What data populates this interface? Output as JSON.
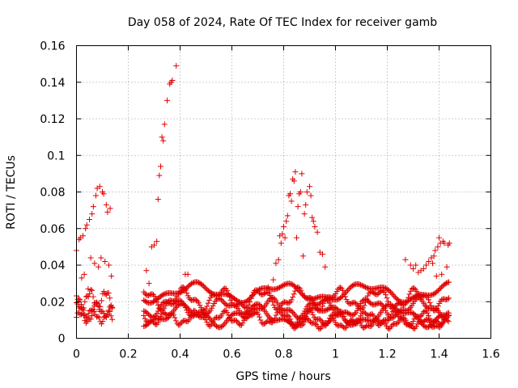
{
  "chart_data": {
    "type": "scatter",
    "title": "Day 058 of 2024, Rate Of TEC Index for receiver gamb",
    "xlabel": "GPS time / hours",
    "ylabel": "ROTI / TECUs",
    "xlim": [
      0,
      1.6
    ],
    "ylim": [
      0,
      0.16
    ],
    "xticks": [
      0,
      0.2,
      0.4,
      0.6,
      0.8,
      1,
      1.2,
      1.4,
      1.6
    ],
    "xtick_labels": [
      "0",
      "0.2",
      "0.4",
      "0.6",
      "0.8",
      "1",
      "1.2",
      "1.4",
      "1.6"
    ],
    "yticks": [
      0,
      0.02,
      0.04,
      0.06,
      0.08,
      0.1,
      0.12,
      0.14,
      0.16
    ],
    "ytick_labels": [
      "0",
      "0.02",
      "0.04",
      "0.06",
      "0.08",
      "0.1",
      "0.12",
      "0.14",
      "0.16"
    ],
    "grid": true,
    "marker": "+",
    "color": "#e00000",
    "series": [
      {
        "name": "ROTI",
        "points": [
          [
            0.0,
            0.048
          ],
          [
            0.005,
            0.02
          ],
          [
            0.01,
            0.054
          ],
          [
            0.015,
            0.055
          ],
          [
            0.02,
            0.033
          ],
          [
            0.025,
            0.056
          ],
          [
            0.03,
            0.035
          ],
          [
            0.035,
            0.06
          ],
          [
            0.04,
            0.062
          ],
          [
            0.045,
            0.027
          ],
          [
            0.05,
            0.065
          ],
          [
            0.055,
            0.044
          ],
          [
            0.06,
            0.068
          ],
          [
            0.065,
            0.072
          ],
          [
            0.07,
            0.041
          ],
          [
            0.075,
            0.078
          ],
          [
            0.08,
            0.082
          ],
          [
            0.085,
            0.039
          ],
          [
            0.09,
            0.083
          ],
          [
            0.095,
            0.044
          ],
          [
            0.1,
            0.08
          ],
          [
            0.105,
            0.079
          ],
          [
            0.11,
            0.042
          ],
          [
            0.115,
            0.073
          ],
          [
            0.12,
            0.069
          ],
          [
            0.125,
            0.04
          ],
          [
            0.13,
            0.071
          ],
          [
            0.135,
            0.034
          ],
          [
            0.27,
            0.037
          ],
          [
            0.28,
            0.03
          ],
          [
            0.29,
            0.05
          ],
          [
            0.3,
            0.051
          ],
          [
            0.31,
            0.053
          ],
          [
            0.315,
            0.076
          ],
          [
            0.32,
            0.089
          ],
          [
            0.325,
            0.094
          ],
          [
            0.33,
            0.11
          ],
          [
            0.335,
            0.108
          ],
          [
            0.34,
            0.117
          ],
          [
            0.35,
            0.13
          ],
          [
            0.36,
            0.139
          ],
          [
            0.365,
            0.14
          ],
          [
            0.37,
            0.141
          ],
          [
            0.385,
            0.149
          ],
          [
            0.42,
            0.035
          ],
          [
            0.43,
            0.035
          ],
          [
            0.74,
            0.028
          ],
          [
            0.76,
            0.032
          ],
          [
            0.77,
            0.041
          ],
          [
            0.78,
            0.043
          ],
          [
            0.785,
            0.056
          ],
          [
            0.79,
            0.052
          ],
          [
            0.795,
            0.057
          ],
          [
            0.8,
            0.061
          ],
          [
            0.805,
            0.055
          ],
          [
            0.81,
            0.064
          ],
          [
            0.815,
            0.067
          ],
          [
            0.82,
            0.078
          ],
          [
            0.825,
            0.079
          ],
          [
            0.83,
            0.075
          ],
          [
            0.835,
            0.087
          ],
          [
            0.84,
            0.086
          ],
          [
            0.845,
            0.091
          ],
          [
            0.85,
            0.055
          ],
          [
            0.855,
            0.072
          ],
          [
            0.86,
            0.079
          ],
          [
            0.865,
            0.08
          ],
          [
            0.87,
            0.09
          ],
          [
            0.875,
            0.045
          ],
          [
            0.88,
            0.068
          ],
          [
            0.885,
            0.073
          ],
          [
            0.89,
            0.08
          ],
          [
            0.9,
            0.083
          ],
          [
            0.905,
            0.078
          ],
          [
            0.91,
            0.066
          ],
          [
            0.915,
            0.064
          ],
          [
            0.92,
            0.061
          ],
          [
            0.93,
            0.058
          ],
          [
            0.94,
            0.047
          ],
          [
            0.95,
            0.046
          ],
          [
            0.96,
            0.039
          ],
          [
            1.27,
            0.043
          ],
          [
            1.29,
            0.04
          ],
          [
            1.3,
            0.038
          ],
          [
            1.31,
            0.04
          ],
          [
            1.32,
            0.036
          ],
          [
            1.33,
            0.037
          ],
          [
            1.34,
            0.038
          ],
          [
            1.35,
            0.04
          ],
          [
            1.36,
            0.042
          ],
          [
            1.37,
            0.044
          ],
          [
            1.375,
            0.041
          ],
          [
            1.38,
            0.045
          ],
          [
            1.385,
            0.048
          ],
          [
            1.39,
            0.034
          ],
          [
            1.395,
            0.05
          ],
          [
            1.4,
            0.055
          ],
          [
            1.405,
            0.052
          ],
          [
            1.41,
            0.035
          ],
          [
            1.415,
            0.053
          ],
          [
            1.42,
            0.052
          ],
          [
            1.43,
            0.039
          ],
          [
            1.435,
            0.051
          ],
          [
            1.44,
            0.052
          ]
        ],
        "bands": [
          {
            "x_start": 0.0,
            "x_end": 0.14,
            "step": 0.0046,
            "center": 0.0115,
            "amplitude": 0.0025,
            "period": 0.055,
            "phase": 0.0
          },
          {
            "x_start": 0.0,
            "x_end": 0.14,
            "step": 0.0046,
            "center": 0.0155,
            "amplitude": 0.003,
            "period": 0.07,
            "phase": 1.1
          },
          {
            "x_start": 0.0,
            "x_end": 0.14,
            "step": 0.0046,
            "center": 0.0215,
            "amplitude": 0.004,
            "period": 0.06,
            "phase": 2.3
          },
          {
            "x_start": 0.26,
            "x_end": 1.44,
            "step": 0.0046,
            "center": 0.011,
            "amplitude": 0.003,
            "period": 0.11,
            "phase": 0.4
          },
          {
            "x_start": 0.26,
            "x_end": 1.44,
            "step": 0.0046,
            "center": 0.0165,
            "amplitude": 0.004,
            "period": 0.19,
            "phase": 1.8
          },
          {
            "x_start": 0.26,
            "x_end": 1.44,
            "step": 0.0046,
            "center": 0.0215,
            "amplitude": 0.0045,
            "period": 0.15,
            "phase": 3.2
          },
          {
            "x_start": 0.26,
            "x_end": 1.44,
            "step": 0.0046,
            "center": 0.0125,
            "amplitude": 0.0045,
            "period": 0.27,
            "phase": 4.5
          },
          {
            "x_start": 0.26,
            "x_end": 1.44,
            "step": 0.0046,
            "center": 0.025,
            "amplitude": 0.004,
            "period": 0.33,
            "phase": 5.4
          },
          {
            "x_start": 0.82,
            "x_end": 1.44,
            "step": 0.0046,
            "center": 0.008,
            "amplitude": 0.002,
            "period": 0.09,
            "phase": 2.0
          }
        ]
      }
    ]
  }
}
